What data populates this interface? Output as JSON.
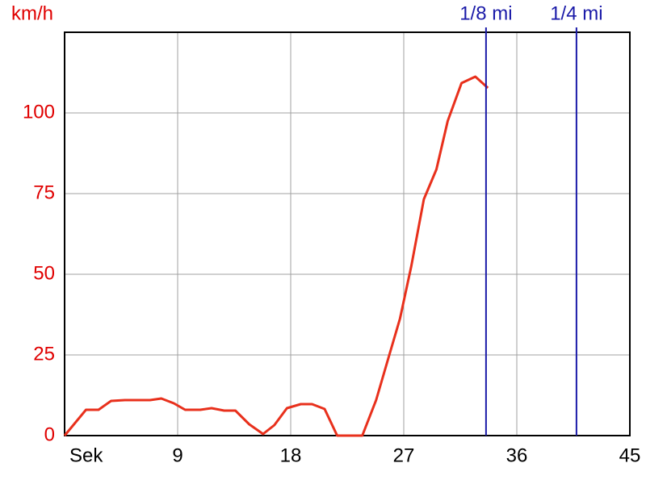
{
  "chart_data": {
    "type": "line",
    "y_label": "km/h",
    "x": [
      0,
      1.7,
      2.7,
      3.7,
      4.8,
      6.8,
      7.7,
      8.7,
      9.6,
      10.8,
      11.7,
      12.7,
      13.6,
      14.7,
      15.8,
      16.7,
      17.7,
      18.8,
      19.7,
      20.7,
      21.7,
      23.7,
      24.8,
      25.7,
      26.7,
      27.6,
      28.6,
      29.6,
      30.5,
      31.6,
      32.7,
      33.7
    ],
    "series": [
      {
        "name": "km/h",
        "color": "#e8301c",
        "values": [
          0,
          8,
          8,
          10.75,
          11,
          11,
          11.5,
          10,
          8,
          8,
          8.5,
          7.75,
          7.75,
          3.5,
          0.5,
          3.25,
          8.5,
          9.75,
          9.75,
          8.25,
          0,
          0,
          11,
          23,
          36.25,
          52.5,
          73.25,
          82.5,
          97.5,
          109.25,
          111.25,
          107.75
        ]
      }
    ],
    "xlim": [
      0,
      45
    ],
    "xticks": [
      {
        "value": 0,
        "label": "Sek"
      },
      9,
      18,
      27,
      36,
      45
    ],
    "ylim": [
      0,
      125
    ],
    "yticks": [
      0,
      25,
      50,
      75,
      100
    ],
    "grid": true,
    "markers": [
      {
        "label": "1/8 mi",
        "x": 33.55,
        "color": "#1a1aa8"
      },
      {
        "label": "1/4 mi",
        "x": 40.75,
        "color": "#1a1aa8"
      }
    ]
  }
}
